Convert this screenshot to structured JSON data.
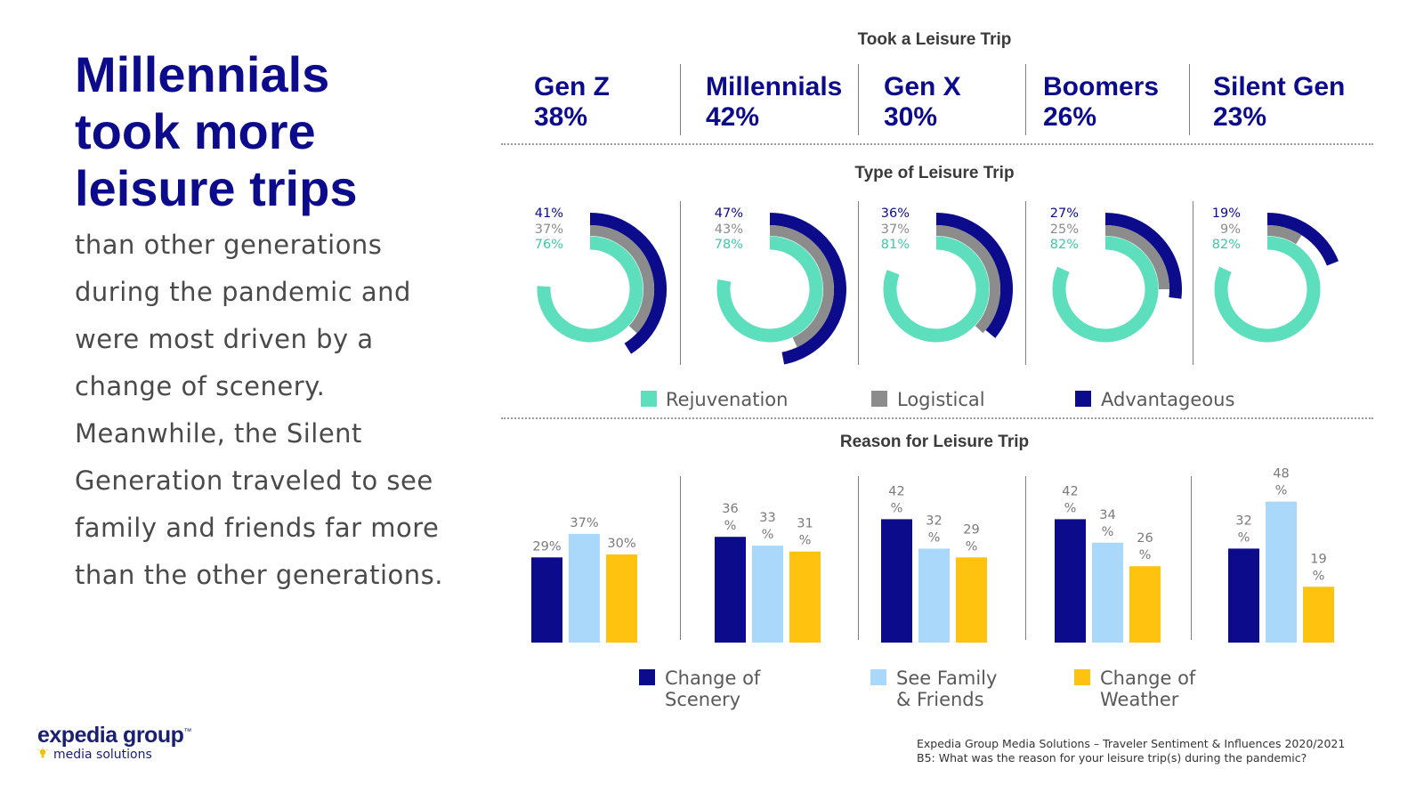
{
  "headline": "Millennials\ntook more\nleisure trips",
  "body": "than other generations during the pandemic and were most driven by a change of scenery. Meanwhile, the Silent Generation traveled to see family and friends far more than the other generations.",
  "colors": {
    "navy": "#0b0b8c",
    "gray": "#8c8c8c",
    "mint": "#5ddfbd",
    "lightblue": "#a9d8fb",
    "gold": "#ffc20e"
  },
  "sections": {
    "took": "Took a Leisure Trip",
    "type": "Type of Leisure Trip",
    "reason": "Reason for Leisure Trip"
  },
  "generations": [
    {
      "name": "Gen Z",
      "took": "38%"
    },
    {
      "name": "Millennials",
      "took": "42%"
    },
    {
      "name": "Gen X",
      "took": "30%"
    },
    {
      "name": "Boomers",
      "took": "26%"
    },
    {
      "name": "Silent Gen",
      "took": "23%"
    }
  ],
  "type_legend": [
    "Rejuvenation",
    "Logistical",
    "Advantageous"
  ],
  "reason_legend": [
    "Change of\nScenery",
    "See Family\n& Friends",
    "Change of\nWeather"
  ],
  "chart_data": [
    {
      "type": "bar",
      "title": "Took a Leisure Trip",
      "categories": [
        "Gen Z",
        "Millennials",
        "Gen X",
        "Boomers",
        "Silent Gen"
      ],
      "values": [
        38,
        42,
        30,
        26,
        23
      ]
    },
    {
      "type": "radial-bar",
      "title": "Type of Leisure Trip",
      "categories": [
        "Gen Z",
        "Millennials",
        "Gen X",
        "Boomers",
        "Silent Gen"
      ],
      "series": [
        {
          "name": "Advantageous",
          "values": [
            41,
            47,
            36,
            27,
            19
          ]
        },
        {
          "name": "Logistical",
          "values": [
            37,
            43,
            37,
            25,
            9
          ]
        },
        {
          "name": "Rejuvenation",
          "values": [
            76,
            78,
            81,
            82,
            82
          ]
        }
      ],
      "labels": [
        [
          "41%",
          "37%",
          "76%"
        ],
        [
          "47%",
          "43%",
          "78%"
        ],
        [
          "36%",
          "37%",
          "81%"
        ],
        [
          "27%",
          "25%",
          "82%"
        ],
        [
          "19%",
          "9%",
          "82%"
        ]
      ]
    },
    {
      "type": "bar",
      "title": "Reason for Leisure Trip",
      "categories": [
        "Gen Z",
        "Millennials",
        "Gen X",
        "Boomers",
        "Silent Gen"
      ],
      "series": [
        {
          "name": "Change of Scenery",
          "values": [
            29,
            36,
            42,
            42,
            32
          ]
        },
        {
          "name": "See Family & Friends",
          "values": [
            37,
            33,
            32,
            34,
            48
          ]
        },
        {
          "name": "Change of Weather",
          "values": [
            30,
            31,
            29,
            26,
            19
          ]
        }
      ],
      "labels": [
        [
          "29%",
          "37%",
          "30%"
        ],
        [
          "36\n%",
          "33\n%",
          "31\n%"
        ],
        [
          "42\n%",
          "32\n%",
          "29\n%"
        ],
        [
          "42\n%",
          "34\n%",
          "26\n%"
        ],
        [
          "32\n%",
          "48\n%",
          "19\n%"
        ]
      ],
      "ylim": [
        0,
        50
      ]
    }
  ],
  "footer": {
    "source": "Expedia Group Media Solutions – Traveler Sentiment & Influences 2020/2021",
    "question": "B5: What was the reason for your leisure trip(s) during the pandemic?"
  },
  "logo": {
    "name": "expedia group",
    "tm": "™",
    "sub": "media solutions",
    "bulb_icon": "lightbulb-icon"
  }
}
